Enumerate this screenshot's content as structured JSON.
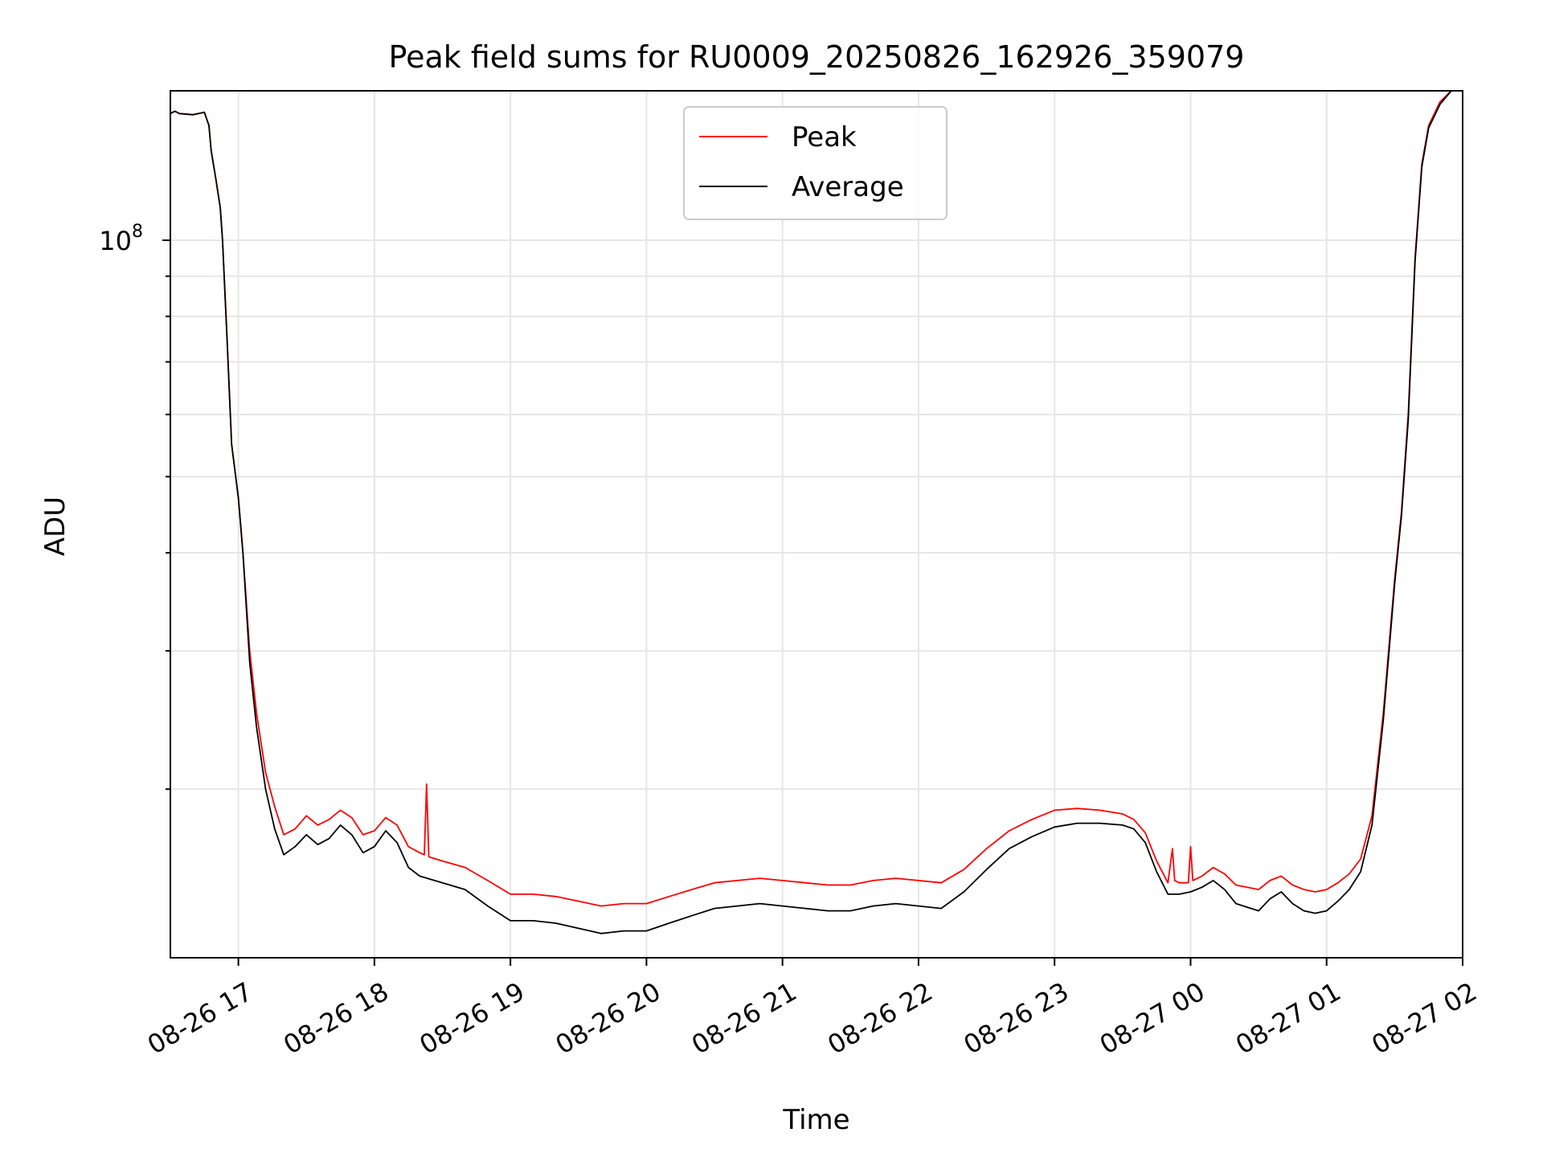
{
  "chart_data": {
    "type": "line",
    "title": "Peak field sums for RU0009_20250826_162926_359079",
    "xlabel": "Time",
    "ylabel": "ADU",
    "y_scale": "log",
    "ylim": [
      12200000,
      155000000
    ],
    "xlim": [
      "2025-08-26 16:30",
      "2025-08-27 02:00"
    ],
    "grid": true,
    "legend_position": "top-center",
    "x_ticks": [
      {
        "t": "2025-08-26 17:00",
        "label": "08-26 17"
      },
      {
        "t": "2025-08-26 18:00",
        "label": "08-26 18"
      },
      {
        "t": "2025-08-26 19:00",
        "label": "08-26 19"
      },
      {
        "t": "2025-08-26 20:00",
        "label": "08-26 20"
      },
      {
        "t": "2025-08-26 21:00",
        "label": "08-26 21"
      },
      {
        "t": "2025-08-26 22:00",
        "label": "08-26 22"
      },
      {
        "t": "2025-08-26 23:00",
        "label": "08-26 23"
      },
      {
        "t": "2025-08-27 00:00",
        "label": "08-27 00"
      },
      {
        "t": "2025-08-27 01:00",
        "label": "08-27 01"
      },
      {
        "t": "2025-08-27 02:00",
        "label": "08-27 02"
      }
    ],
    "y_major_tick": {
      "value": 100000000,
      "label_base": "10",
      "label_exp": "8"
    },
    "y_minor_ticks": [
      20000000,
      30000000,
      40000000,
      50000000,
      60000000,
      70000000,
      80000000,
      90000000
    ],
    "series": [
      {
        "name": "Peak",
        "color": "#ff0000",
        "points": [
          [
            "2025-08-26 16:30",
            145000000
          ],
          [
            "2025-08-26 16:32",
            146000000
          ],
          [
            "2025-08-26 16:34",
            145000000
          ],
          [
            "2025-08-26 16:40",
            144500000
          ],
          [
            "2025-08-26 16:45",
            145500000
          ],
          [
            "2025-08-26 16:47",
            140000000
          ],
          [
            "2025-08-26 16:48",
            130000000
          ],
          [
            "2025-08-26 16:50",
            120000000
          ],
          [
            "2025-08-26 16:52",
            110000000
          ],
          [
            "2025-08-26 16:53",
            100000000
          ],
          [
            "2025-08-26 16:55",
            75000000
          ],
          [
            "2025-08-26 16:57",
            55000000
          ],
          [
            "2025-08-26 17:00",
            47000000
          ],
          [
            "2025-08-26 17:02",
            40000000
          ],
          [
            "2025-08-26 17:05",
            30000000
          ],
          [
            "2025-08-26 17:08",
            25000000
          ],
          [
            "2025-08-26 17:12",
            21000000
          ],
          [
            "2025-08-26 17:16",
            19000000
          ],
          [
            "2025-08-26 17:20",
            17500000
          ],
          [
            "2025-08-26 17:25",
            17800000
          ],
          [
            "2025-08-26 17:30",
            18500000
          ],
          [
            "2025-08-26 17:35",
            18000000
          ],
          [
            "2025-08-26 17:40",
            18300000
          ],
          [
            "2025-08-26 17:45",
            18800000
          ],
          [
            "2025-08-26 17:50",
            18400000
          ],
          [
            "2025-08-26 17:55",
            17500000
          ],
          [
            "2025-08-26 18:00",
            17700000
          ],
          [
            "2025-08-26 18:05",
            18400000
          ],
          [
            "2025-08-26 18:10",
            18000000
          ],
          [
            "2025-08-26 18:15",
            16900000
          ],
          [
            "2025-08-26 18:20",
            16600000
          ],
          [
            "2025-08-26 18:22",
            16500000
          ],
          [
            "2025-08-26 18:23",
            20300000
          ],
          [
            "2025-08-26 18:24",
            16400000
          ],
          [
            "2025-08-26 18:30",
            16200000
          ],
          [
            "2025-08-26 18:40",
            15900000
          ],
          [
            "2025-08-26 18:50",
            15300000
          ],
          [
            "2025-08-26 19:00",
            14700000
          ],
          [
            "2025-08-26 19:10",
            14700000
          ],
          [
            "2025-08-26 19:20",
            14600000
          ],
          [
            "2025-08-26 19:30",
            14400000
          ],
          [
            "2025-08-26 19:40",
            14200000
          ],
          [
            "2025-08-26 19:50",
            14300000
          ],
          [
            "2025-08-26 20:00",
            14300000
          ],
          [
            "2025-08-26 20:10",
            14600000
          ],
          [
            "2025-08-26 20:20",
            14900000
          ],
          [
            "2025-08-26 20:30",
            15200000
          ],
          [
            "2025-08-26 20:40",
            15300000
          ],
          [
            "2025-08-26 20:50",
            15400000
          ],
          [
            "2025-08-26 21:00",
            15300000
          ],
          [
            "2025-08-26 21:10",
            15200000
          ],
          [
            "2025-08-26 21:20",
            15100000
          ],
          [
            "2025-08-26 21:30",
            15100000
          ],
          [
            "2025-08-26 21:40",
            15300000
          ],
          [
            "2025-08-26 21:50",
            15400000
          ],
          [
            "2025-08-26 22:00",
            15300000
          ],
          [
            "2025-08-26 22:10",
            15200000
          ],
          [
            "2025-08-26 22:20",
            15800000
          ],
          [
            "2025-08-26 22:30",
            16800000
          ],
          [
            "2025-08-26 22:40",
            17700000
          ],
          [
            "2025-08-26 22:50",
            18300000
          ],
          [
            "2025-08-26 23:00",
            18800000
          ],
          [
            "2025-08-26 23:10",
            18900000
          ],
          [
            "2025-08-26 23:20",
            18800000
          ],
          [
            "2025-08-26 23:30",
            18600000
          ],
          [
            "2025-08-26 23:35",
            18300000
          ],
          [
            "2025-08-26 23:40",
            17600000
          ],
          [
            "2025-08-26 23:45",
            16200000
          ],
          [
            "2025-08-26 23:50",
            15200000
          ],
          [
            "2025-08-26 23:52",
            16800000
          ],
          [
            "2025-08-26 23:53",
            15300000
          ],
          [
            "2025-08-26 23:55",
            15200000
          ],
          [
            "2025-08-26 23:59",
            15200000
          ],
          [
            "2025-08-27 00:00",
            16900000
          ],
          [
            "2025-08-27 00:01",
            15300000
          ],
          [
            "2025-08-27 00:05",
            15500000
          ],
          [
            "2025-08-27 00:10",
            15900000
          ],
          [
            "2025-08-27 00:15",
            15600000
          ],
          [
            "2025-08-27 00:20",
            15100000
          ],
          [
            "2025-08-27 00:30",
            14900000
          ],
          [
            "2025-08-27 00:35",
            15300000
          ],
          [
            "2025-08-27 00:40",
            15500000
          ],
          [
            "2025-08-27 00:45",
            15100000
          ],
          [
            "2025-08-27 00:50",
            14900000
          ],
          [
            "2025-08-27 00:55",
            14800000
          ],
          [
            "2025-08-27 01:00",
            14900000
          ],
          [
            "2025-08-27 01:05",
            15200000
          ],
          [
            "2025-08-27 01:10",
            15600000
          ],
          [
            "2025-08-27 01:15",
            16300000
          ],
          [
            "2025-08-27 01:20",
            18500000
          ],
          [
            "2025-08-27 01:25",
            25000000
          ],
          [
            "2025-08-27 01:30",
            37000000
          ],
          [
            "2025-08-27 01:33",
            45000000
          ],
          [
            "2025-08-27 01:36",
            60000000
          ],
          [
            "2025-08-27 01:39",
            95000000
          ],
          [
            "2025-08-27 01:42",
            125000000
          ],
          [
            "2025-08-27 01:45",
            140000000
          ],
          [
            "2025-08-27 01:50",
            150000000
          ],
          [
            "2025-08-27 01:55",
            155000000
          ],
          [
            "2025-08-27 01:57",
            155000000
          ]
        ]
      },
      {
        "name": "Average",
        "color": "#000000",
        "points": [
          [
            "2025-08-26 16:30",
            145000000
          ],
          [
            "2025-08-26 16:32",
            146000000
          ],
          [
            "2025-08-26 16:34",
            145000000
          ],
          [
            "2025-08-26 16:40",
            144500000
          ],
          [
            "2025-08-26 16:45",
            145500000
          ],
          [
            "2025-08-26 16:47",
            140000000
          ],
          [
            "2025-08-26 16:48",
            130000000
          ],
          [
            "2025-08-26 16:50",
            120000000
          ],
          [
            "2025-08-26 16:52",
            110000000
          ],
          [
            "2025-08-26 16:53",
            100000000
          ],
          [
            "2025-08-26 16:55",
            75000000
          ],
          [
            "2025-08-26 16:57",
            55000000
          ],
          [
            "2025-08-26 17:00",
            47000000
          ],
          [
            "2025-08-26 17:02",
            40000000
          ],
          [
            "2025-08-26 17:05",
            29000000
          ],
          [
            "2025-08-26 17:08",
            24000000
          ],
          [
            "2025-08-26 17:12",
            20000000
          ],
          [
            "2025-08-26 17:16",
            17800000
          ],
          [
            "2025-08-26 17:20",
            16500000
          ],
          [
            "2025-08-26 17:25",
            16900000
          ],
          [
            "2025-08-26 17:30",
            17500000
          ],
          [
            "2025-08-26 17:35",
            17000000
          ],
          [
            "2025-08-26 17:40",
            17300000
          ],
          [
            "2025-08-26 17:45",
            18000000
          ],
          [
            "2025-08-26 17:50",
            17500000
          ],
          [
            "2025-08-26 17:55",
            16600000
          ],
          [
            "2025-08-26 18:00",
            16900000
          ],
          [
            "2025-08-26 18:05",
            17700000
          ],
          [
            "2025-08-26 18:10",
            17100000
          ],
          [
            "2025-08-26 18:15",
            15900000
          ],
          [
            "2025-08-26 18:20",
            15500000
          ],
          [
            "2025-08-26 18:30",
            15200000
          ],
          [
            "2025-08-26 18:40",
            14900000
          ],
          [
            "2025-08-26 18:50",
            14200000
          ],
          [
            "2025-08-26 19:00",
            13600000
          ],
          [
            "2025-08-26 19:10",
            13600000
          ],
          [
            "2025-08-26 19:20",
            13500000
          ],
          [
            "2025-08-26 19:30",
            13300000
          ],
          [
            "2025-08-26 19:40",
            13100000
          ],
          [
            "2025-08-26 19:50",
            13200000
          ],
          [
            "2025-08-26 20:00",
            13200000
          ],
          [
            "2025-08-26 20:10",
            13500000
          ],
          [
            "2025-08-26 20:20",
            13800000
          ],
          [
            "2025-08-26 20:30",
            14100000
          ],
          [
            "2025-08-26 20:40",
            14200000
          ],
          [
            "2025-08-26 20:50",
            14300000
          ],
          [
            "2025-08-26 21:00",
            14200000
          ],
          [
            "2025-08-26 21:10",
            14100000
          ],
          [
            "2025-08-26 21:20",
            14000000
          ],
          [
            "2025-08-26 21:30",
            14000000
          ],
          [
            "2025-08-26 21:40",
            14200000
          ],
          [
            "2025-08-26 21:50",
            14300000
          ],
          [
            "2025-08-26 22:00",
            14200000
          ],
          [
            "2025-08-26 22:10",
            14100000
          ],
          [
            "2025-08-26 22:20",
            14800000
          ],
          [
            "2025-08-26 22:30",
            15800000
          ],
          [
            "2025-08-26 22:40",
            16800000
          ],
          [
            "2025-08-26 22:50",
            17400000
          ],
          [
            "2025-08-26 23:00",
            17900000
          ],
          [
            "2025-08-26 23:10",
            18100000
          ],
          [
            "2025-08-26 23:20",
            18100000
          ],
          [
            "2025-08-26 23:30",
            18000000
          ],
          [
            "2025-08-26 23:35",
            17800000
          ],
          [
            "2025-08-26 23:40",
            17100000
          ],
          [
            "2025-08-26 23:45",
            15700000
          ],
          [
            "2025-08-26 23:50",
            14700000
          ],
          [
            "2025-08-26 23:55",
            14700000
          ],
          [
            "2025-08-27 00:00",
            14800000
          ],
          [
            "2025-08-27 00:05",
            15000000
          ],
          [
            "2025-08-27 00:10",
            15300000
          ],
          [
            "2025-08-27 00:15",
            14900000
          ],
          [
            "2025-08-27 00:20",
            14300000
          ],
          [
            "2025-08-27 00:30",
            14000000
          ],
          [
            "2025-08-27 00:35",
            14500000
          ],
          [
            "2025-08-27 00:40",
            14800000
          ],
          [
            "2025-08-27 00:45",
            14300000
          ],
          [
            "2025-08-27 00:50",
            14000000
          ],
          [
            "2025-08-27 00:55",
            13900000
          ],
          [
            "2025-08-27 01:00",
            14000000
          ],
          [
            "2025-08-27 01:05",
            14400000
          ],
          [
            "2025-08-27 01:10",
            14900000
          ],
          [
            "2025-08-27 01:15",
            15700000
          ],
          [
            "2025-08-27 01:20",
            18000000
          ],
          [
            "2025-08-27 01:25",
            24500000
          ],
          [
            "2025-08-27 01:30",
            36500000
          ],
          [
            "2025-08-27 01:33",
            44500000
          ],
          [
            "2025-08-27 01:36",
            59000000
          ],
          [
            "2025-08-27 01:39",
            94000000
          ],
          [
            "2025-08-27 01:42",
            124000000
          ],
          [
            "2025-08-27 01:45",
            139000000
          ],
          [
            "2025-08-27 01:50",
            149000000
          ],
          [
            "2025-08-27 01:55",
            155000000
          ],
          [
            "2025-08-27 01:57",
            155000000
          ]
        ]
      }
    ]
  }
}
